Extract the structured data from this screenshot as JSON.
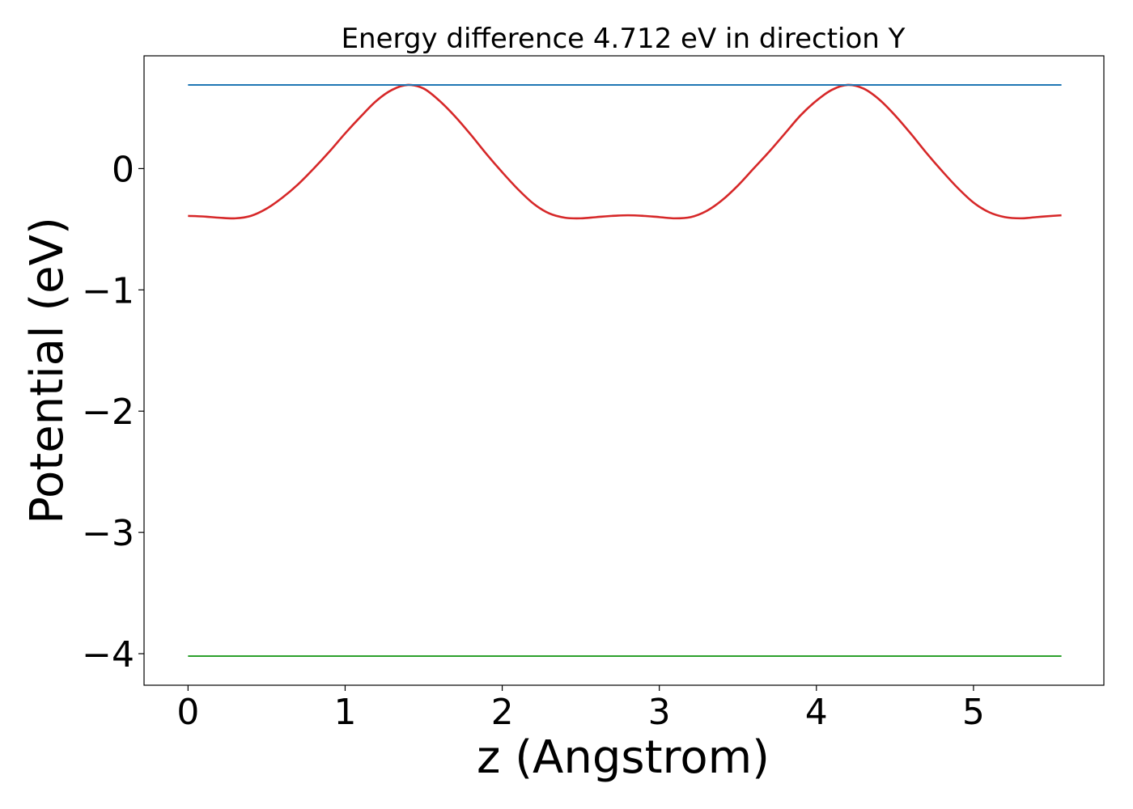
{
  "chart_data": {
    "type": "line",
    "title": "Energy difference 4.712 eV in direction Y",
    "xlabel": "z (Angstrom)",
    "ylabel": "Potential (eV)",
    "xlim": [
      -0.28,
      5.83
    ],
    "ylim": [
      -4.26,
      0.93
    ],
    "xticks": [
      0,
      1,
      2,
      3,
      4,
      5
    ],
    "xtick_labels": [
      "0",
      "1",
      "2",
      "3",
      "4",
      "5"
    ],
    "yticks": [
      -4,
      -3,
      -2,
      -1,
      0
    ],
    "ytick_labels": [
      "−4",
      "−3",
      "−2",
      "−1",
      "0"
    ],
    "grid": false,
    "legend": "none",
    "series": [
      {
        "color": "#d62728",
        "style": "curve",
        "x": [
          0.0,
          0.1,
          0.2,
          0.3,
          0.4,
          0.5,
          0.6,
          0.7,
          0.8,
          0.9,
          1.0,
          1.1,
          1.2,
          1.3,
          1.4,
          1.5,
          1.6,
          1.7,
          1.8,
          1.9,
          2.0,
          2.1,
          2.2,
          2.3,
          2.4,
          2.5,
          2.6,
          2.7,
          2.8,
          2.9,
          3.0,
          3.1,
          3.2,
          3.3,
          3.4,
          3.5,
          3.6,
          3.7,
          3.8,
          3.9,
          4.0,
          4.1,
          4.2,
          4.3,
          4.4,
          4.5,
          4.6,
          4.7,
          4.8,
          4.9,
          5.0,
          5.1,
          5.2,
          5.3,
          5.4,
          5.5,
          5.56
        ],
        "y": [
          -0.39,
          -0.395,
          -0.405,
          -0.41,
          -0.39,
          -0.33,
          -0.24,
          -0.13,
          0.0,
          0.14,
          0.29,
          0.43,
          0.56,
          0.65,
          0.69,
          0.66,
          0.56,
          0.43,
          0.28,
          0.12,
          -0.03,
          -0.17,
          -0.29,
          -0.37,
          -0.405,
          -0.41,
          -0.4,
          -0.39,
          -0.385,
          -0.39,
          -0.4,
          -0.41,
          -0.4,
          -0.35,
          -0.26,
          -0.14,
          -0.0,
          0.14,
          0.29,
          0.44,
          0.56,
          0.65,
          0.69,
          0.66,
          0.57,
          0.44,
          0.29,
          0.13,
          -0.02,
          -0.16,
          -0.28,
          -0.36,
          -0.4,
          -0.41,
          -0.4,
          -0.39,
          -0.385
        ]
      },
      {
        "color": "#1f77b4",
        "style": "flat",
        "x": [
          0.0,
          5.56
        ],
        "y": [
          0.69,
          0.69
        ]
      },
      {
        "color": "#2ca02c",
        "style": "flat",
        "x": [
          0.0,
          5.56
        ],
        "y": [
          -4.02,
          -4.02
        ]
      }
    ]
  }
}
